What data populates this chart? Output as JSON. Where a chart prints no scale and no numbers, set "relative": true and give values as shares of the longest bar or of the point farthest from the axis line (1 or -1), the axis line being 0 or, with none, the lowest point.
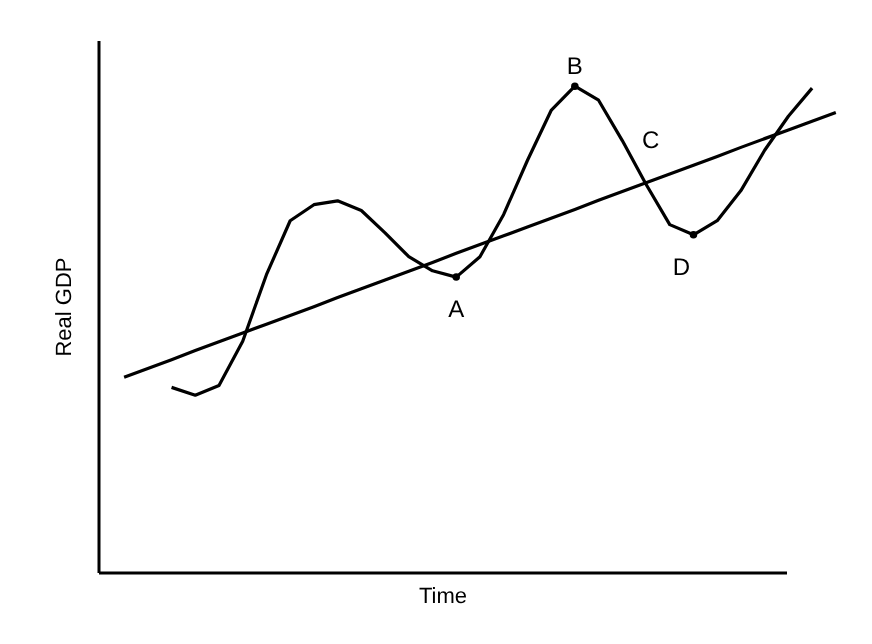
{
  "chart_data": {
    "type": "line",
    "relative": true,
    "xlabel": "Time",
    "ylabel": "Real GDP",
    "marker": "none",
    "line_style": "solid",
    "categories": [
      null,
      null,
      null,
      null,
      null,
      null,
      null,
      null,
      null,
      null,
      null,
      null,
      null,
      null,
      null,
      null,
      null,
      null,
      null,
      null,
      null,
      null,
      null,
      null,
      null,
      null,
      null,
      null,
      null,
      null,
      null
    ],
    "series": [
      {
        "color": "#000000",
        "values": [
          null,
          null,
          0.38,
          0.364,
          0.384,
          0.475,
          0.612,
          0.723,
          0.756,
          0.764,
          0.744,
          0.698,
          0.649,
          0.62,
          0.607,
          0.649,
          0.736,
          0.847,
          0.95,
          1.0,
          0.971,
          0.888,
          0.798,
          0.715,
          0.694,
          0.723,
          0.785,
          0.868,
          0.938,
          0.996,
          null
        ]
      },
      {
        "color": "#000000",
        "values": [
          0.401,
          0.419,
          0.437,
          0.456,
          0.474,
          0.492,
          0.51,
          0.528,
          0.546,
          0.565,
          0.583,
          0.601,
          0.619,
          0.637,
          0.656,
          0.674,
          0.692,
          0.71,
          0.728,
          0.746,
          0.765,
          0.783,
          0.801,
          0.819,
          0.837,
          0.855,
          0.874,
          0.892,
          0.91,
          0.928,
          0.946
        ]
      }
    ],
    "annotations": [
      {
        "text": "A",
        "y": 0.607
      },
      {
        "text": "B",
        "y": 1.0
      },
      "C",
      {
        "text": "D",
        "y": 0.694
      }
    ]
  }
}
